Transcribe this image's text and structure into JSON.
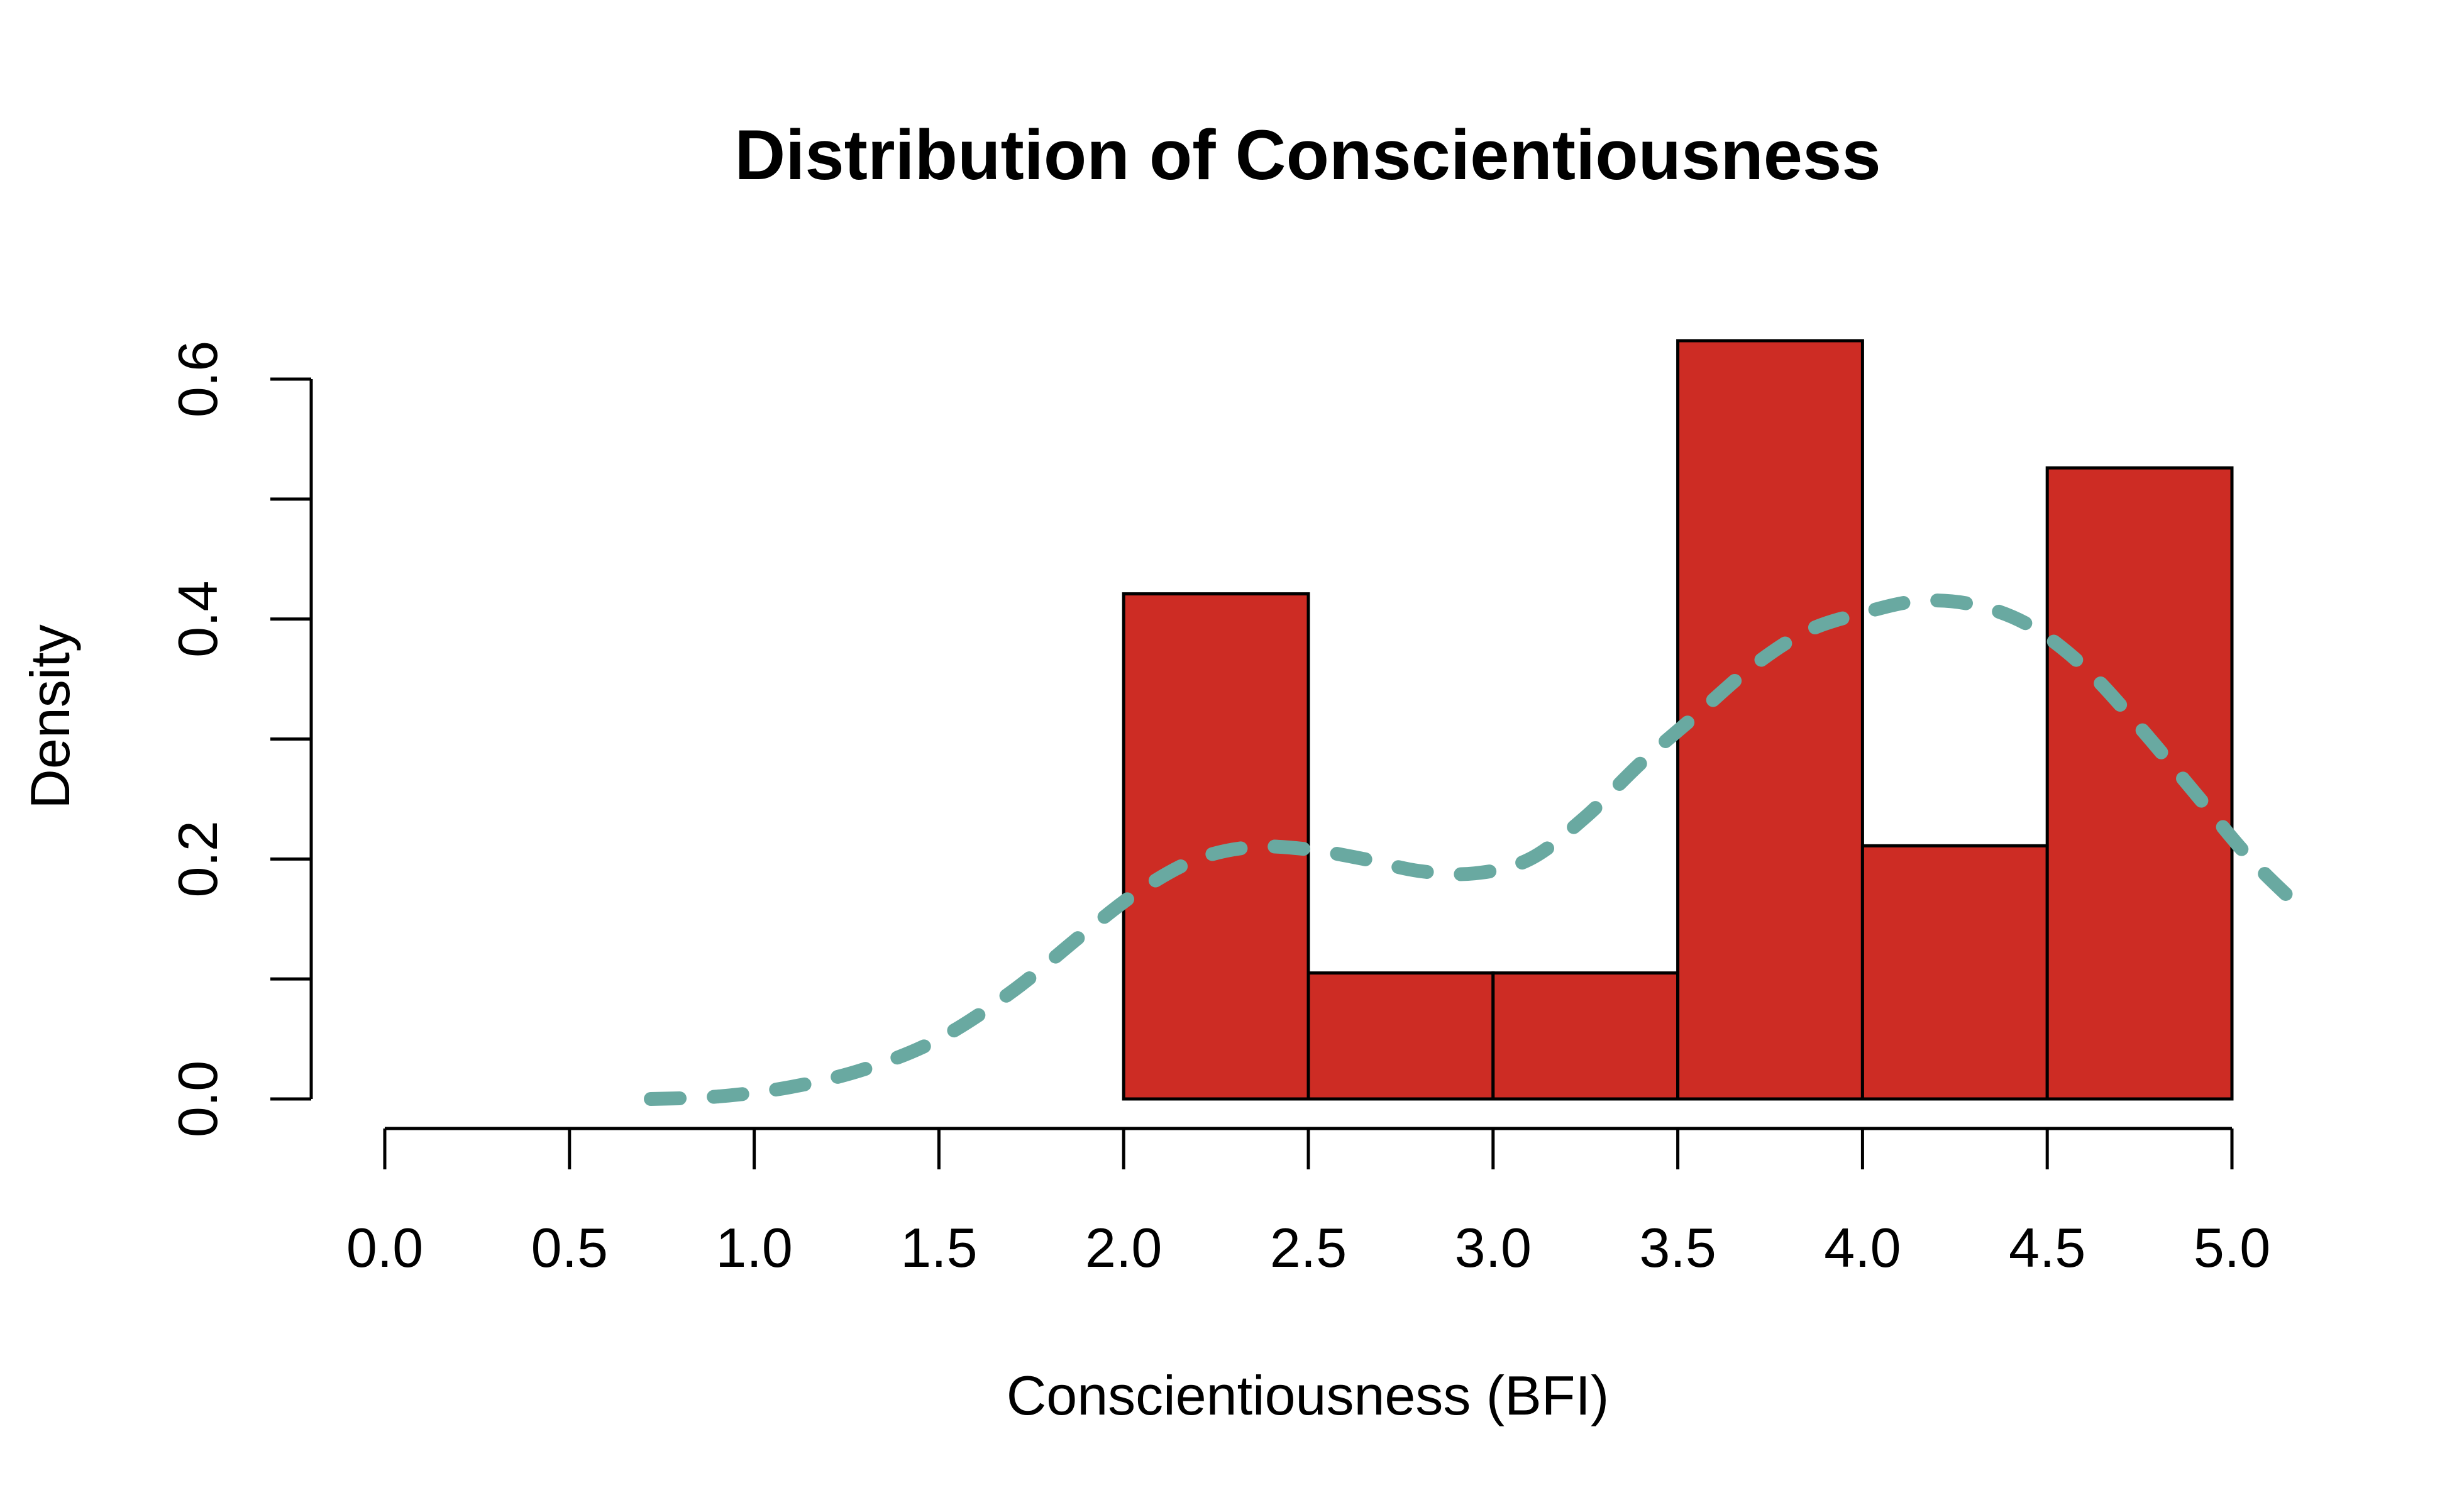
{
  "chart_data": {
    "type": "bar",
    "title": "Distribution of Conscientiousness",
    "xlabel": "Conscientiousness (BFI)",
    "ylabel": "Density",
    "xlim": [
      0,
      5
    ],
    "ylim": [
      0,
      0.6
    ],
    "x_ticks": [
      "0.0",
      "0.5",
      "1.0",
      "1.5",
      "2.0",
      "2.5",
      "3.0",
      "3.5",
      "4.0",
      "4.5",
      "5.0"
    ],
    "y_ticks": [
      "0.0",
      "0.2",
      "0.4",
      "0.6"
    ],
    "y_minor_ticks": [
      0.1,
      0.3,
      0.5
    ],
    "bins": [
      {
        "x0": 2.0,
        "x1": 2.5,
        "density": 0.421
      },
      {
        "x0": 2.5,
        "x1": 3.0,
        "density": 0.105
      },
      {
        "x0": 3.0,
        "x1": 3.5,
        "density": 0.105
      },
      {
        "x0": 3.5,
        "x1": 4.0,
        "density": 0.632
      },
      {
        "x0": 4.0,
        "x1": 4.5,
        "density": 0.211
      },
      {
        "x0": 4.5,
        "x1": 5.0,
        "density": 0.526
      }
    ],
    "density_curve": {
      "x": [
        0.72,
        0.9,
        1.1,
        1.3,
        1.5,
        1.7,
        1.9,
        2.05,
        2.2,
        2.35,
        2.5,
        2.65,
        2.8,
        2.95,
        3.1,
        3.25,
        3.4,
        3.55,
        3.7,
        3.85,
        4.0,
        4.15,
        4.3,
        4.45,
        4.6,
        4.75,
        4.9,
        5.05,
        5.2
      ],
      "y": [
        0.0,
        0.002,
        0.01,
        0.025,
        0.05,
        0.09,
        0.14,
        0.175,
        0.2,
        0.21,
        0.208,
        0.2,
        0.19,
        0.188,
        0.2,
        0.235,
        0.28,
        0.32,
        0.36,
        0.39,
        0.405,
        0.415,
        0.412,
        0.395,
        0.36,
        0.31,
        0.255,
        0.2,
        0.155
      ]
    },
    "bar_color": "#CD2C24",
    "bar_edge_color": "#000000",
    "curve_color": "#69A9A1",
    "curve_style": "dashed"
  }
}
